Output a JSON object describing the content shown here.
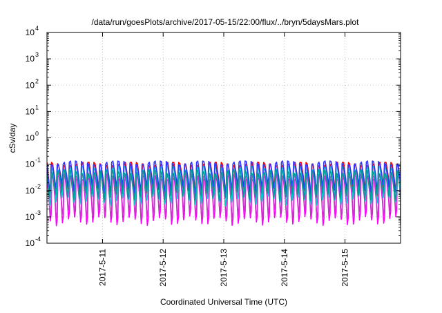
{
  "chart_data": {
    "type": "line",
    "title": "/data/run/goesPlots/archive/2017-05-15/22:00/flux/../bryn/5daysMars.plot",
    "xlabel": "Coordinated Universal Time (UTC)",
    "ylabel": "cSv/day",
    "y_scale": "log",
    "ylim": [
      0.0001,
      10000
    ],
    "y_ticks": [
      {
        "value": 0.0001,
        "base": "10",
        "exp": "-4"
      },
      {
        "value": 0.001,
        "base": "10",
        "exp": "-3"
      },
      {
        "value": 0.01,
        "base": "10",
        "exp": "-2"
      },
      {
        "value": 0.1,
        "base": "10",
        "exp": "-1"
      },
      {
        "value": 1,
        "base": "10",
        "exp": "0"
      },
      {
        "value": 10,
        "base": "10",
        "exp": "1"
      },
      {
        "value": 100,
        "base": "10",
        "exp": "2"
      },
      {
        "value": 1000,
        "base": "10",
        "exp": "3"
      },
      {
        "value": 10000,
        "base": "10",
        "exp": "4"
      }
    ],
    "xlim": [
      "2017-05-10T02:00",
      "2017-05-15T22:00"
    ],
    "x_ticks": [
      {
        "value": "2017-05-11T00:00",
        "label": "2017-5-11"
      },
      {
        "value": "2017-05-12T00:00",
        "label": "2017-5-12"
      },
      {
        "value": "2017-05-13T00:00",
        "label": "2017-5-13"
      },
      {
        "value": "2017-05-14T00:00",
        "label": "2017-5-14"
      },
      {
        "value": "2017-05-15T00:00",
        "label": "2017-5-15"
      }
    ],
    "grid": true,
    "legend": "none",
    "period_hours": 2.4,
    "series": [
      {
        "color": "#ff00ff",
        "peak": 0.03,
        "trough": 0.0007
      },
      {
        "color": "#cc33cc",
        "peak": 0.04,
        "trough": 0.0012
      },
      {
        "color": "#ff0000",
        "peak": 0.1,
        "trough": 0.008
      },
      {
        "color": "#00cccc",
        "peak": 0.07,
        "trough": 0.004
      },
      {
        "color": "#3333ff",
        "peak": 0.11,
        "trough": 0.012
      },
      {
        "color": "#009999",
        "peak": 0.05,
        "trough": 0.006
      }
    ]
  }
}
